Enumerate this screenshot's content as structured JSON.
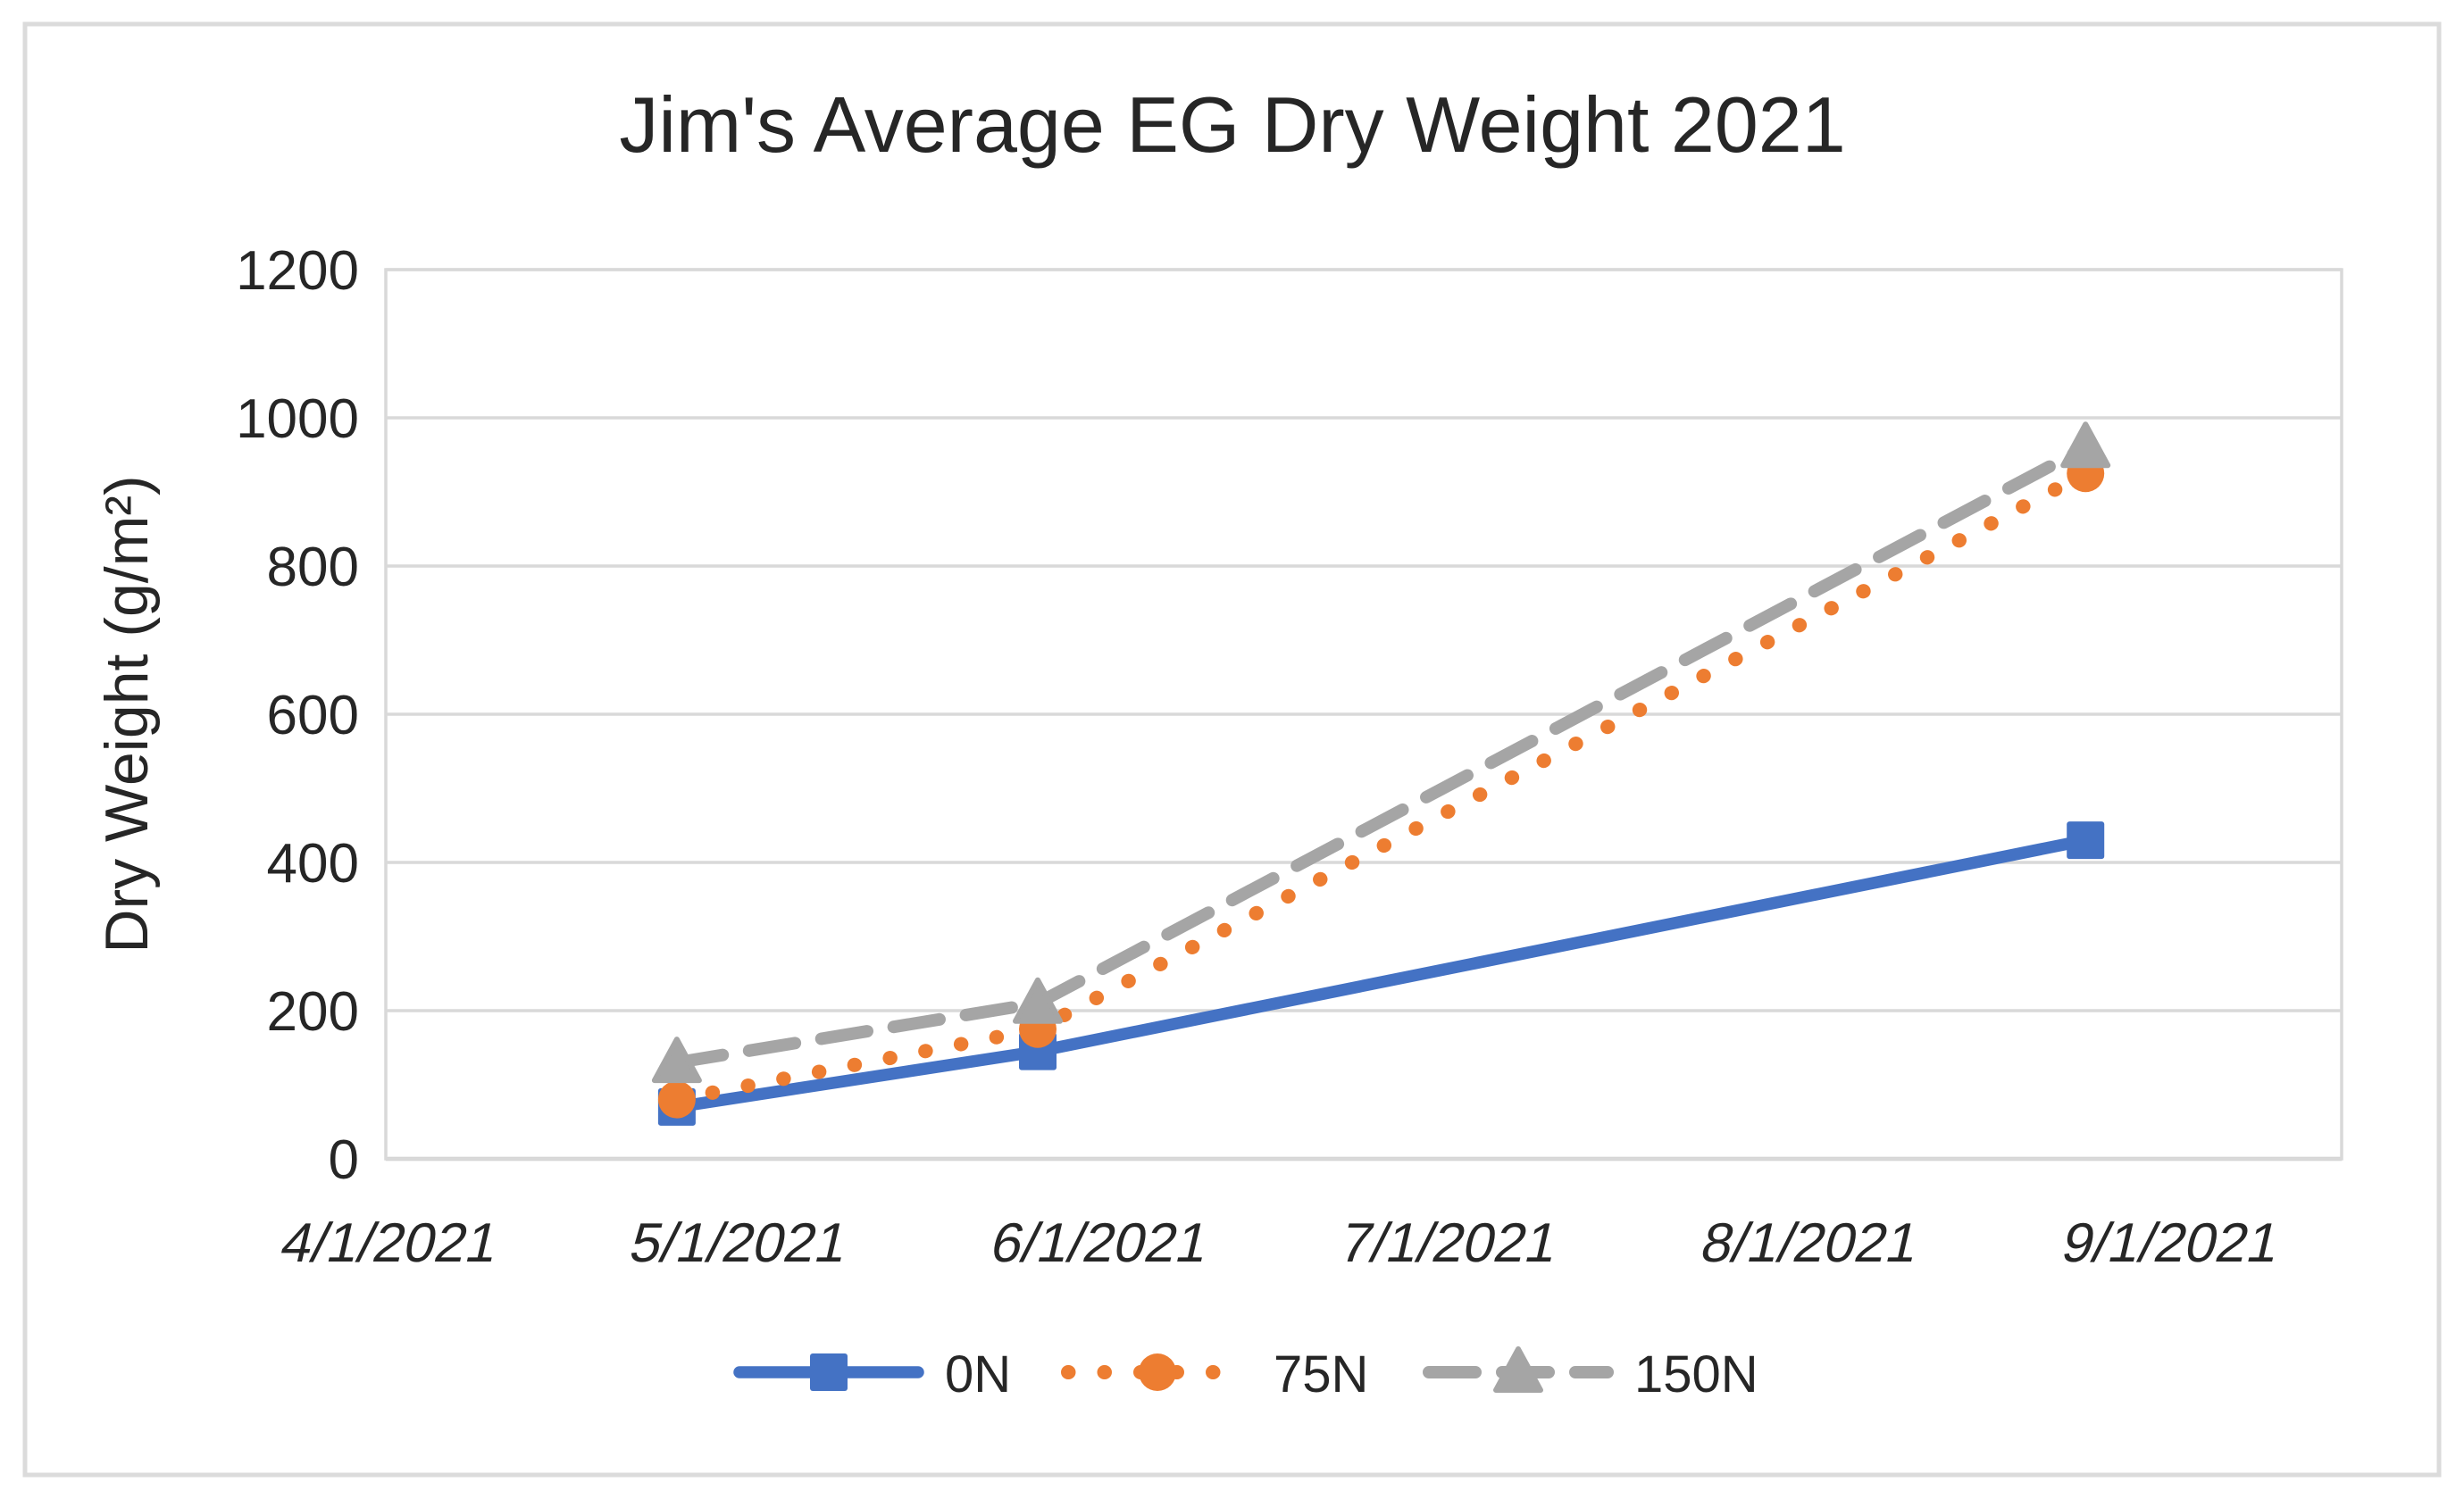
{
  "chart_data": {
    "type": "line",
    "title": "Jim's Average EG Dry Weight 2021",
    "xlabel": "",
    "ylabel": "Dry Weight (g/m²)",
    "ylim": [
      0,
      1200
    ],
    "y_ticks": [
      0,
      200,
      400,
      600,
      800,
      1000,
      1200
    ],
    "x_axis": {
      "kind": "date",
      "min": "4/1/2021",
      "last_tick": "9/1/2021",
      "tick_labels": [
        "4/1/2021",
        "5/1/2021",
        "6/1/2021",
        "7/1/2021",
        "8/1/2021",
        "9/1/2021"
      ],
      "tick_days_from_min": [
        0,
        30,
        61,
        91,
        122,
        153
      ],
      "plot_extends_to_day": 168
    },
    "grid": "horizontal-light-gray",
    "legend_position": "bottom-center",
    "series": [
      {
        "name": "0N",
        "color": "#4472C4",
        "line_style": "solid",
        "marker": "square",
        "x_dates": [
          "4/26/2021",
          "5/27/2021",
          "8/25/2021"
        ],
        "x_days_from_axis_min": [
          25,
          56,
          146
        ],
        "values": [
          70,
          145,
          430
        ]
      },
      {
        "name": "75N",
        "color": "#ED7D31",
        "line_style": "dotted",
        "marker": "circle",
        "x_dates": [
          "4/26/2021",
          "5/27/2021",
          "8/25/2021"
        ],
        "x_days_from_axis_min": [
          25,
          56,
          146
        ],
        "values": [
          80,
          175,
          925
        ]
      },
      {
        "name": "150N",
        "color": "#A5A5A5",
        "line_style": "dashed",
        "marker": "triangle",
        "x_dates": [
          "4/26/2021",
          "5/27/2021",
          "8/25/2021"
        ],
        "x_days_from_axis_min": [
          25,
          56,
          146
        ],
        "values": [
          130,
          210,
          960
        ]
      }
    ],
    "colors": {
      "gridline": "#D9D9D9",
      "axis_line": "#CDCDCD",
      "border": "#DBDBDB",
      "text": "#262626",
      "background": "#FFFFFF"
    }
  }
}
